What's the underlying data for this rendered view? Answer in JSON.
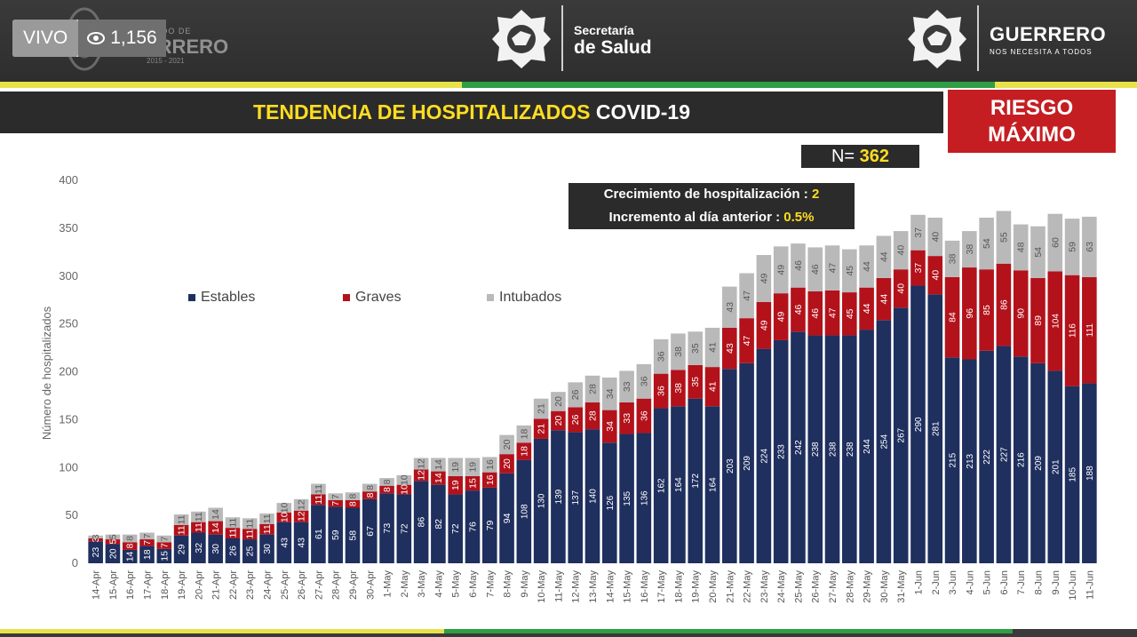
{
  "header": {
    "live_label": "VIVO",
    "viewer_count": "1,156",
    "left_logo_small": "ESTADO DE",
    "left_logo_main": "GUERRERO",
    "left_logo_years": "2015 - 2021",
    "secretaria_line1": "Secretaría",
    "secretaria_line2": "de Salud",
    "guerrero_main": "GUERRERO",
    "guerrero_sub": "NOS NECESITA A TODOS"
  },
  "title": {
    "highlight": "TENDENCIA DE HOSPITALIZADOS",
    "rest": "COVID-19"
  },
  "riesgo": {
    "line1": "RIESGO",
    "line2": "MÁXIMO"
  },
  "n_box": {
    "label": "N=",
    "value": "362"
  },
  "info": {
    "growth_label": "Crecimiento de hospitalización :",
    "growth_value": "2",
    "increment_label": "Incremento al día anterior :",
    "increment_value": "0.5%"
  },
  "colors": {
    "estables": "#1f2f5e",
    "graves": "#b3121b",
    "intubados": "#b9b9b9",
    "yellow": "#ffdd22"
  },
  "chart_data": {
    "type": "bar",
    "stacked": true,
    "ylabel": "Número de hospitalizados",
    "ylim": [
      0,
      400
    ],
    "yticks": [
      0,
      50,
      100,
      150,
      200,
      250,
      300,
      350,
      400
    ],
    "legend": [
      "Estables",
      "Graves",
      "Intubados"
    ],
    "categories": [
      "14-Apr",
      "15-Apr",
      "16-Apr",
      "17-Apr",
      "18-Apr",
      "19-Apr",
      "20-Apr",
      "21-Apr",
      "22-Apr",
      "23-Apr",
      "24-Apr",
      "25-Apr",
      "26-Apr",
      "27-Apr",
      "28-Apr",
      "29-Apr",
      "30-Apr",
      "1-May",
      "2-May",
      "3-May",
      "4-May",
      "5-May",
      "6-May",
      "7-May",
      "8-May",
      "9-May",
      "10-May",
      "11-May",
      "12-May",
      "13-May",
      "14-May",
      "15-May",
      "16-May",
      "17-May",
      "18-May",
      "19-May",
      "20-May",
      "21-May",
      "22-May",
      "23-May",
      "24-May",
      "25-May",
      "26-May",
      "27-May",
      "28-May",
      "29-May",
      "30-May",
      "31-May",
      "1-Jun",
      "2-Jun",
      "3-Jun",
      "4-Jun",
      "5-Jun",
      "6-Jun",
      "7-Jun",
      "8-Jun",
      "9-Jun",
      "10-Jun",
      "11-Jun"
    ],
    "series": [
      {
        "name": "Estables",
        "values": [
          23,
          20,
          14,
          18,
          15,
          29,
          32,
          30,
          26,
          25,
          30,
          43,
          43,
          61,
          59,
          58,
          67,
          73,
          72,
          86,
          82,
          72,
          76,
          79,
          94,
          108,
          130,
          139,
          137,
          140,
          126,
          135,
          136,
          162,
          164,
          172,
          164,
          203,
          209,
          224,
          233,
          242,
          238,
          238,
          238,
          244,
          254,
          267,
          290,
          281,
          215,
          213,
          222,
          227,
          216,
          209,
          201,
          185,
          188
        ]
      },
      {
        "name": "Graves",
        "values": [
          3,
          5,
          8,
          7,
          7,
          11,
          11,
          14,
          11,
          11,
          11,
          10,
          12,
          11,
          7,
          8,
          8,
          8,
          10,
          12,
          14,
          19,
          15,
          16,
          20,
          18,
          21,
          20,
          26,
          28,
          34,
          33,
          36,
          36,
          38,
          35,
          41,
          43,
          47,
          49,
          49,
          46,
          46,
          47,
          45,
          44,
          44,
          40,
          37,
          40,
          84,
          96,
          85,
          86,
          90,
          89,
          104,
          116,
          111
        ]
      },
      {
        "name": "Intubados",
        "values": [
          3,
          5,
          8,
          7,
          7,
          11,
          11,
          14,
          11,
          11,
          11,
          10,
          12,
          11,
          7,
          8,
          8,
          8,
          10,
          12,
          14,
          19,
          19,
          16,
          20,
          18,
          21,
          20,
          26,
          28,
          34,
          33,
          36,
          36,
          38,
          35,
          41,
          43,
          47,
          49,
          49,
          46,
          46,
          47,
          45,
          44,
          44,
          40,
          37,
          40,
          38,
          38,
          54,
          55,
          48,
          54,
          60,
          59,
          63
        ]
      }
    ]
  }
}
